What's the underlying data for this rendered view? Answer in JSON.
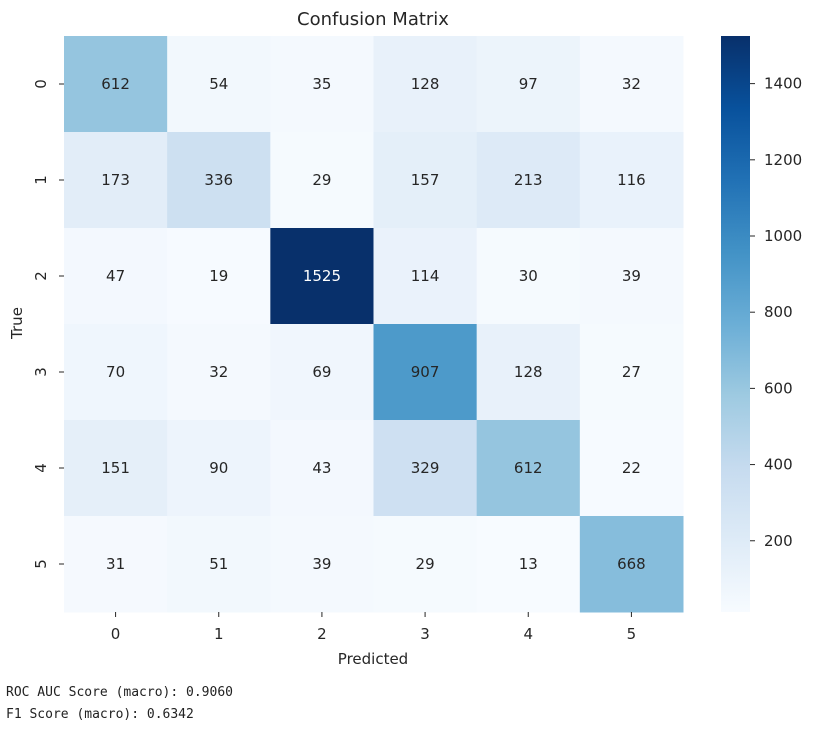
{
  "chart_data": {
    "type": "heatmap",
    "title": "Confusion Matrix",
    "xlabel": "Predicted",
    "ylabel": "True",
    "x_tick_labels": [
      "0",
      "1",
      "2",
      "3",
      "4",
      "5"
    ],
    "y_tick_labels": [
      "0",
      "1",
      "2",
      "3",
      "4",
      "5"
    ],
    "values": [
      [
        612,
        54,
        35,
        128,
        97,
        32
      ],
      [
        173,
        336,
        29,
        157,
        213,
        116
      ],
      [
        47,
        19,
        1525,
        114,
        30,
        39
      ],
      [
        70,
        32,
        69,
        907,
        128,
        27
      ],
      [
        151,
        90,
        43,
        329,
        612,
        22
      ],
      [
        31,
        51,
        39,
        29,
        13,
        668
      ]
    ],
    "colormap": "Blues",
    "colorbar": {
      "range": [
        13,
        1525
      ],
      "ticks": [
        200,
        400,
        600,
        800,
        1000,
        1200,
        1400
      ],
      "tick_labels": [
        "200",
        "400",
        "600",
        "800",
        "1000",
        "1200",
        "1400"
      ]
    }
  },
  "output": {
    "roc_auc": "ROC AUC Score (macro): 0.9060",
    "f1": "F1 Score (macro): 0.6342"
  }
}
